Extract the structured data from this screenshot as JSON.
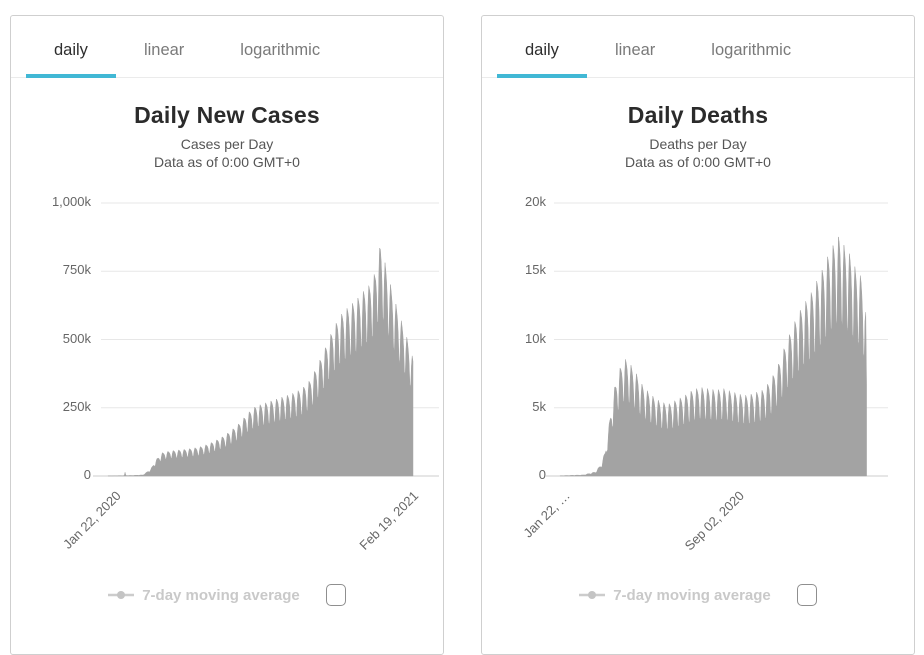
{
  "accent_color": "#41b8d5",
  "bar_color": "#a3a3a3",
  "grid_color": "#e7e7e7",
  "axis_line_color": "#cccccc",
  "panels": [
    {
      "tabs": [
        {
          "label": "daily",
          "active": true
        },
        {
          "label": "linear",
          "active": false
        },
        {
          "label": "logarithmic",
          "active": false
        }
      ],
      "title": "Daily New Cases",
      "subtitle_line1": "Cases per Day",
      "subtitle_line2": "Data as of 0:00 GMT+0",
      "legend": {
        "label": "7-day moving average",
        "checkbox_checked": false
      }
    },
    {
      "tabs": [
        {
          "label": "daily",
          "active": true
        },
        {
          "label": "linear",
          "active": false
        },
        {
          "label": "logarithmic",
          "active": false
        }
      ],
      "title": "Daily Deaths",
      "subtitle_line1": "Deaths per Day",
      "subtitle_line2": "Data as of 0:00 GMT+0",
      "legend": {
        "label": "7-day moving average",
        "checkbox_checked": false
      }
    }
  ],
  "chart_data": [
    {
      "type": "bar",
      "title": "Daily New Cases",
      "ylabel": "Cases per Day",
      "unit": "thousands of cases",
      "ylim": [
        0,
        1000
      ],
      "grid": true,
      "n_days": 394,
      "yticks": [
        {
          "label": "1,000k",
          "value": 1000
        },
        {
          "label": "750k",
          "value": 750
        },
        {
          "label": "500k",
          "value": 500
        },
        {
          "label": "250k",
          "value": 250
        },
        {
          "label": "0",
          "value": 0
        }
      ],
      "xticks": [
        {
          "label": "Jan 22, 2020",
          "day": 0
        },
        {
          "label": "Feb 19, 2021",
          "day": 393
        }
      ],
      "anchors": [
        [
          0,
          0.6
        ],
        [
          20,
          1.5
        ],
        [
          21,
          2
        ],
        [
          22,
          14
        ],
        [
          23,
          2
        ],
        [
          30,
          2
        ],
        [
          45,
          4
        ],
        [
          55,
          25
        ],
        [
          62,
          60
        ],
        [
          70,
          85
        ],
        [
          80,
          92
        ],
        [
          90,
          95
        ],
        [
          100,
          98
        ],
        [
          110,
          102
        ],
        [
          120,
          108
        ],
        [
          130,
          118
        ],
        [
          140,
          132
        ],
        [
          150,
          148
        ],
        [
          160,
          170
        ],
        [
          170,
          195
        ],
        [
          180,
          230
        ],
        [
          190,
          255
        ],
        [
          200,
          265
        ],
        [
          210,
          275
        ],
        [
          220,
          285
        ],
        [
          230,
          295
        ],
        [
          240,
          305
        ],
        [
          250,
          320
        ],
        [
          260,
          350
        ],
        [
          270,
          405
        ],
        [
          280,
          470
        ],
        [
          290,
          540
        ],
        [
          300,
          590
        ],
        [
          310,
          620
        ],
        [
          320,
          645
        ],
        [
          330,
          680
        ],
        [
          337,
          700
        ],
        [
          344,
          745
        ],
        [
          351,
          850
        ],
        [
          358,
          770
        ],
        [
          365,
          690
        ],
        [
          372,
          620
        ],
        [
          379,
          560
        ],
        [
          386,
          500
        ],
        [
          393,
          430
        ]
      ],
      "weekly_amp": 0.3,
      "weekly_pattern": [
        0,
        0.08,
        0.2,
        0.45,
        0.95,
        1,
        0.35
      ]
    },
    {
      "type": "bar",
      "title": "Daily Deaths",
      "ylabel": "Deaths per Day",
      "unit": "thousands of deaths",
      "ylim": [
        0,
        20
      ],
      "grid": true,
      "n_days": 394,
      "yticks": [
        {
          "label": "20k",
          "value": 20
        },
        {
          "label": "15k",
          "value": 15
        },
        {
          "label": "10k",
          "value": 10
        },
        {
          "label": "5k",
          "value": 5
        },
        {
          "label": "0",
          "value": 0
        }
      ],
      "xticks": [
        {
          "label": "Jan 22, …",
          "day": 0
        },
        {
          "label": "Sep 02, 2020",
          "day": 224
        }
      ],
      "anchors": [
        [
          0,
          0.02
        ],
        [
          30,
          0.08
        ],
        [
          45,
          0.3
        ],
        [
          52,
          0.8
        ],
        [
          58,
          1.8
        ],
        [
          64,
          4.2
        ],
        [
          70,
          6.5
        ],
        [
          76,
          7.8
        ],
        [
          83,
          8.6
        ],
        [
          90,
          8.2
        ],
        [
          97,
          7.6
        ],
        [
          104,
          6.8
        ],
        [
          111,
          6.3
        ],
        [
          120,
          5.8
        ],
        [
          130,
          5.4
        ],
        [
          140,
          5.3
        ],
        [
          150,
          5.6
        ],
        [
          160,
          5.9
        ],
        [
          170,
          6.3
        ],
        [
          180,
          6.5
        ],
        [
          190,
          6.4
        ],
        [
          200,
          6.3
        ],
        [
          210,
          6.4
        ],
        [
          220,
          6.2
        ],
        [
          230,
          6.0
        ],
        [
          240,
          5.9
        ],
        [
          250,
          6.1
        ],
        [
          260,
          6.3
        ],
        [
          270,
          7.0
        ],
        [
          280,
          8.2
        ],
        [
          290,
          9.8
        ],
        [
          300,
          11.2
        ],
        [
          310,
          12.4
        ],
        [
          320,
          13.2
        ],
        [
          330,
          14.4
        ],
        [
          337,
          15.2
        ],
        [
          344,
          16.2
        ],
        [
          351,
          17.0
        ],
        [
          358,
          17.6
        ],
        [
          365,
          16.8
        ],
        [
          372,
          16.2
        ],
        [
          379,
          15.2
        ],
        [
          386,
          14.6
        ],
        [
          391,
          13.0
        ],
        [
          392,
          12.0
        ],
        [
          393,
          7.0
        ]
      ],
      "weekly_amp": 0.36,
      "weekly_pattern": [
        0,
        0.08,
        0.2,
        0.45,
        0.95,
        1,
        0.35
      ]
    }
  ]
}
